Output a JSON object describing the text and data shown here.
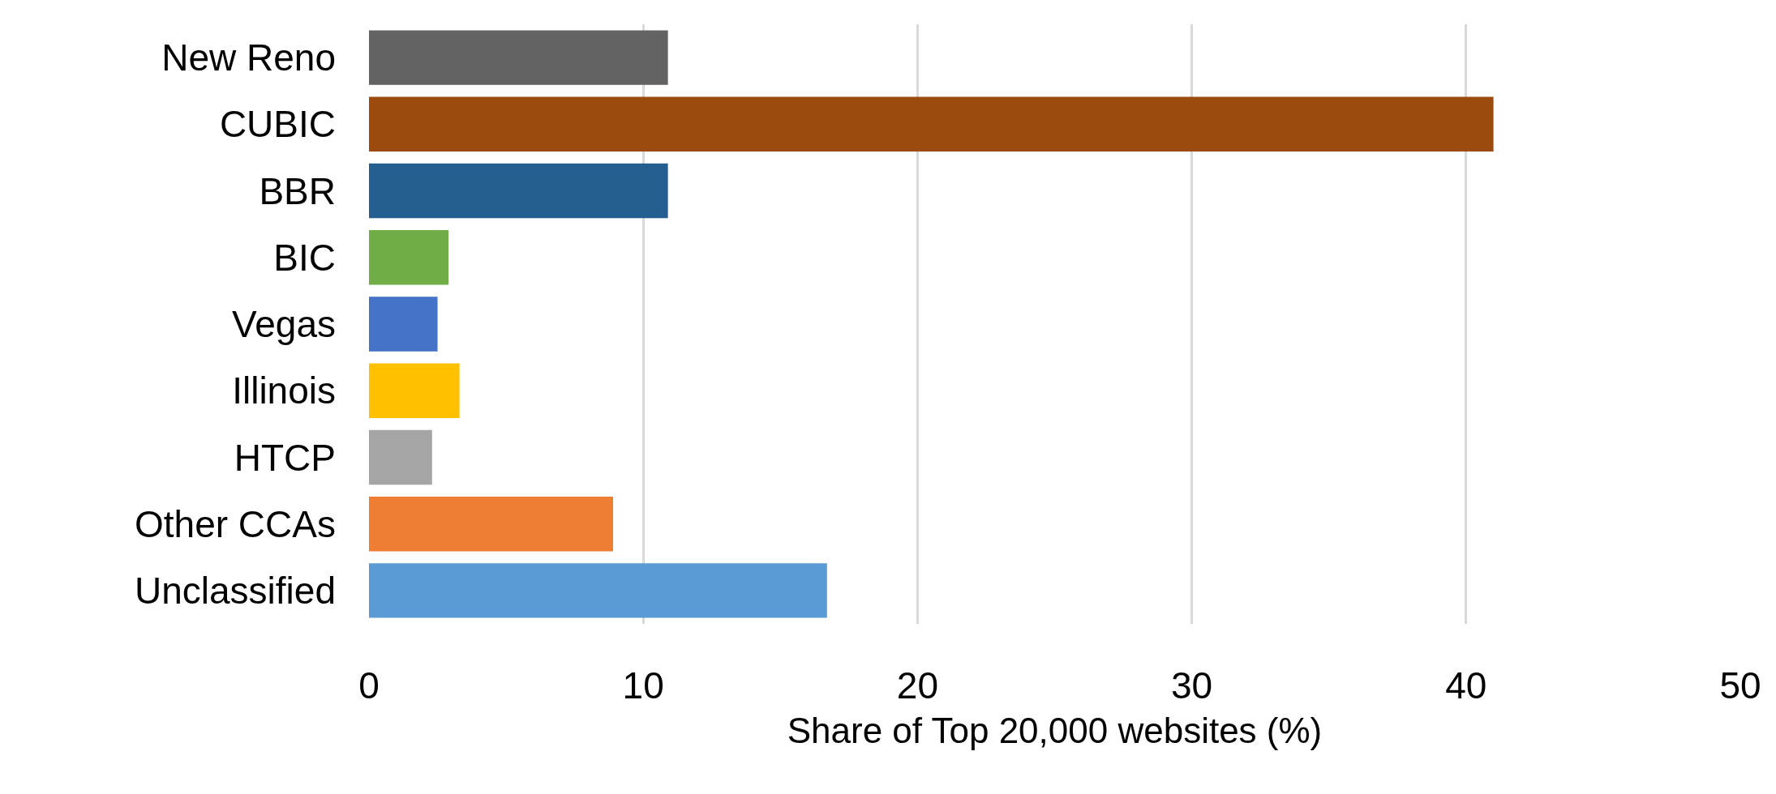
{
  "chart_data": {
    "type": "bar",
    "orientation": "horizontal",
    "categories": [
      "New Reno",
      "CUBIC",
      "BBR",
      "BIC",
      "Vegas",
      "Illinois",
      "HTCP",
      "Other CCAs",
      "Unclassified"
    ],
    "values": [
      10.9,
      41.0,
      10.9,
      2.9,
      2.5,
      3.3,
      2.3,
      8.9,
      16.7
    ],
    "colors": [
      "#636363",
      "#9c4a0e",
      "#255e91",
      "#70ad47",
      "#4472c4",
      "#ffc000",
      "#a5a5a5",
      "#ed7d31",
      "#5b9bd5"
    ],
    "xlabel": "Share of Top 20,000 websites (%)",
    "xlim": [
      0,
      50
    ],
    "xticks": [
      0,
      10,
      20,
      30,
      40,
      50
    ],
    "grid": "x"
  }
}
